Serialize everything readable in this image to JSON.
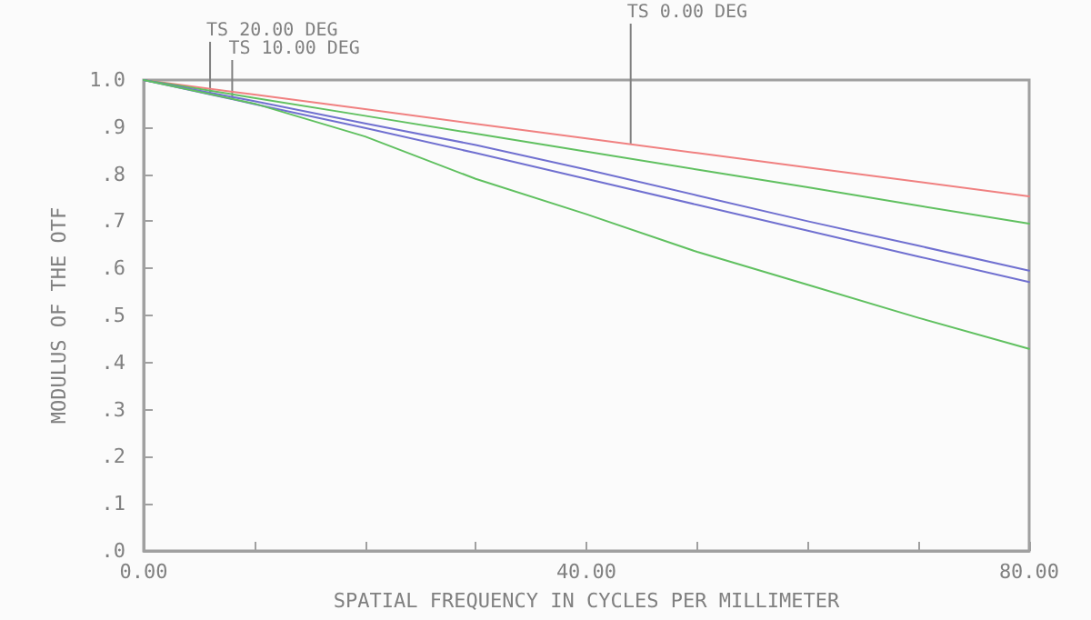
{
  "chart_data": {
    "type": "line",
    "xlabel": "SPATIAL FREQUENCY IN CYCLES PER MILLIMETER",
    "ylabel": "MODULUS OF THE OTF",
    "x": [
      0,
      10,
      20,
      30,
      40,
      50,
      60,
      70,
      80
    ],
    "series": [
      {
        "color": "#f08080",
        "values": [
          1.0,
          0.969,
          0.938,
          0.907,
          0.876,
          0.845,
          0.814,
          0.784,
          0.753
        ]
      },
      {
        "color": "#60c060",
        "values": [
          1.0,
          0.962,
          0.924,
          0.886,
          0.848,
          0.81,
          0.772,
          0.733,
          0.695
        ]
      },
      {
        "color": "#7070d0",
        "values": [
          1.0,
          0.955,
          0.908,
          0.862,
          0.81,
          0.755,
          0.7,
          0.648,
          0.595
        ]
      },
      {
        "color": "#7070d0",
        "values": [
          1.0,
          0.949,
          0.898,
          0.845,
          0.79,
          0.735,
          0.68,
          0.625,
          0.571
        ]
      },
      {
        "color": "#60c060",
        "values": [
          1.0,
          0.95,
          0.88,
          0.79,
          0.715,
          0.635,
          0.565,
          0.495,
          0.429
        ]
      }
    ],
    "xlim": [
      0,
      80
    ],
    "xticks": [
      {
        "value": 0,
        "label": "0.00"
      },
      {
        "value": 10,
        "label": null
      },
      {
        "value": 20,
        "label": null
      },
      {
        "value": 30,
        "label": null
      },
      {
        "value": 40,
        "label": "40.00"
      },
      {
        "value": 50,
        "label": null
      },
      {
        "value": 60,
        "label": null
      },
      {
        "value": 70,
        "label": null
      },
      {
        "value": 80,
        "label": "80.00"
      }
    ],
    "ylim": [
      0,
      1
    ],
    "yticks": [
      {
        "value": 0,
        "label": ".0"
      },
      {
        "value": 0.1,
        "label": ".1"
      },
      {
        "value": 0.2,
        "label": ".2"
      },
      {
        "value": 0.3,
        "label": ".3"
      },
      {
        "value": 0.4,
        "label": ".4"
      },
      {
        "value": 0.5,
        "label": ".5"
      },
      {
        "value": 0.6,
        "label": ".6"
      },
      {
        "value": 0.7,
        "label": ".7"
      },
      {
        "value": 0.8,
        "label": ".8"
      },
      {
        "value": 0.9,
        "label": ".9"
      },
      {
        "value": 1.0,
        "label": "1.0"
      }
    ],
    "annotations": [
      {
        "text": "TS 10.00 DEG",
        "x": 8,
        "y": 0.96
      },
      {
        "text": "TS 20.00 DEG",
        "x": 6,
        "y": 0.97
      },
      {
        "text": "TS 0.00 DEG",
        "x": 44,
        "y": 0.865
      }
    ],
    "grid": false,
    "marker": "none",
    "line_style": "solid"
  }
}
